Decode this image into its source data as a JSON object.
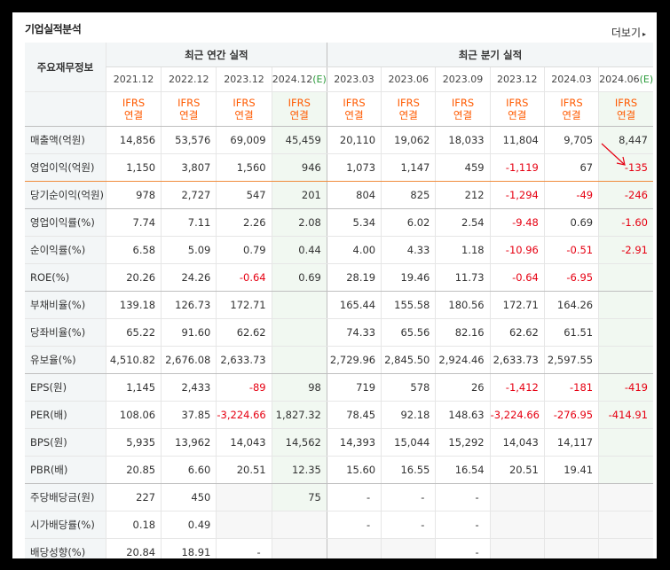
{
  "section_title": "기업실적분석",
  "more_link": "더보기",
  "more_arrow": "▸",
  "header": {
    "row_label": "주요재무정보",
    "annual_group": "최근 연간 실적",
    "quarter_group": "최근 분기 실적",
    "ifrs_top": "IFRS",
    "ifrs_bottom": "연결",
    "periods": [
      "2021.12",
      "2022.12",
      "2023.12",
      "2024.12",
      "2023.03",
      "2023.06",
      "2023.09",
      "2023.12",
      "2024.03",
      "2024.06"
    ],
    "estimate_suffix": "(E)"
  },
  "rows": [
    {
      "label": "매출액(억원)",
      "values": [
        "14,856",
        "53,576",
        "69,009",
        "45,459",
        "20,110",
        "19,062",
        "18,033",
        "11,804",
        "9,705",
        "8,447"
      ]
    },
    {
      "label": "영업이익(억원)",
      "values": [
        "1,150",
        "3,807",
        "1,560",
        "946",
        "1,073",
        "1,147",
        "459",
        "-1,119",
        "67",
        "-135"
      ]
    },
    {
      "label": "당기순이익(억원)",
      "values": [
        "978",
        "2,727",
        "547",
        "201",
        "804",
        "825",
        "212",
        "-1,294",
        "-49",
        "-246"
      ]
    },
    {
      "label": "영업이익률(%)",
      "values": [
        "7.74",
        "7.11",
        "2.26",
        "2.08",
        "5.34",
        "6.02",
        "2.54",
        "-9.48",
        "0.69",
        "-1.60"
      ]
    },
    {
      "label": "순이익률(%)",
      "values": [
        "6.58",
        "5.09",
        "0.79",
        "0.44",
        "4.00",
        "4.33",
        "1.18",
        "-10.96",
        "-0.51",
        "-2.91"
      ]
    },
    {
      "label": "ROE(%)",
      "values": [
        "20.26",
        "24.26",
        "-0.64",
        "0.69",
        "28.19",
        "19.46",
        "11.73",
        "-0.64",
        "-6.95",
        ""
      ]
    },
    {
      "label": "부채비율(%)",
      "values": [
        "139.18",
        "126.73",
        "172.71",
        "",
        "165.44",
        "155.58",
        "180.56",
        "172.71",
        "164.26",
        ""
      ]
    },
    {
      "label": "당좌비율(%)",
      "values": [
        "65.22",
        "91.60",
        "62.62",
        "",
        "74.33",
        "65.56",
        "82.16",
        "62.62",
        "61.51",
        ""
      ]
    },
    {
      "label": "유보율(%)",
      "values": [
        "4,510.82",
        "2,676.08",
        "2,633.73",
        "",
        "2,729.96",
        "2,845.50",
        "2,924.46",
        "2,633.73",
        "2,597.55",
        ""
      ]
    },
    {
      "label": "EPS(원)",
      "values": [
        "1,145",
        "2,433",
        "-89",
        "98",
        "719",
        "578",
        "26",
        "-1,412",
        "-181",
        "-419"
      ]
    },
    {
      "label": "PER(배)",
      "values": [
        "108.06",
        "37.85",
        "-3,224.66",
        "1,827.32",
        "78.45",
        "92.18",
        "148.63",
        "-3,224.66",
        "-276.95",
        "-414.91"
      ]
    },
    {
      "label": "BPS(원)",
      "values": [
        "5,935",
        "13,962",
        "14,043",
        "14,562",
        "14,393",
        "15,044",
        "15,292",
        "14,043",
        "14,117",
        ""
      ]
    },
    {
      "label": "PBR(배)",
      "values": [
        "20.85",
        "6.60",
        "20.51",
        "12.35",
        "15.60",
        "16.55",
        "16.54",
        "20.51",
        "19.41",
        ""
      ]
    },
    {
      "label": "주당배당금(원)",
      "values": [
        "227",
        "450",
        "",
        "75",
        "-",
        "-",
        "-",
        "",
        "",
        ""
      ]
    },
    {
      "label": "시가배당률(%)",
      "values": [
        "0.18",
        "0.49",
        "",
        "",
        "-",
        "-",
        "-",
        "",
        "",
        ""
      ]
    },
    {
      "label": "배당성향(%)",
      "values": [
        "20.84",
        "18.91",
        "-",
        "",
        "",
        "",
        "-",
        "",
        "",
        ""
      ]
    }
  ],
  "colors": {
    "negative": "#e60012",
    "ifrs": "#ff5a00",
    "estimate_bg": "#f1f8f1",
    "annotation_arrow": "#e60012"
  }
}
